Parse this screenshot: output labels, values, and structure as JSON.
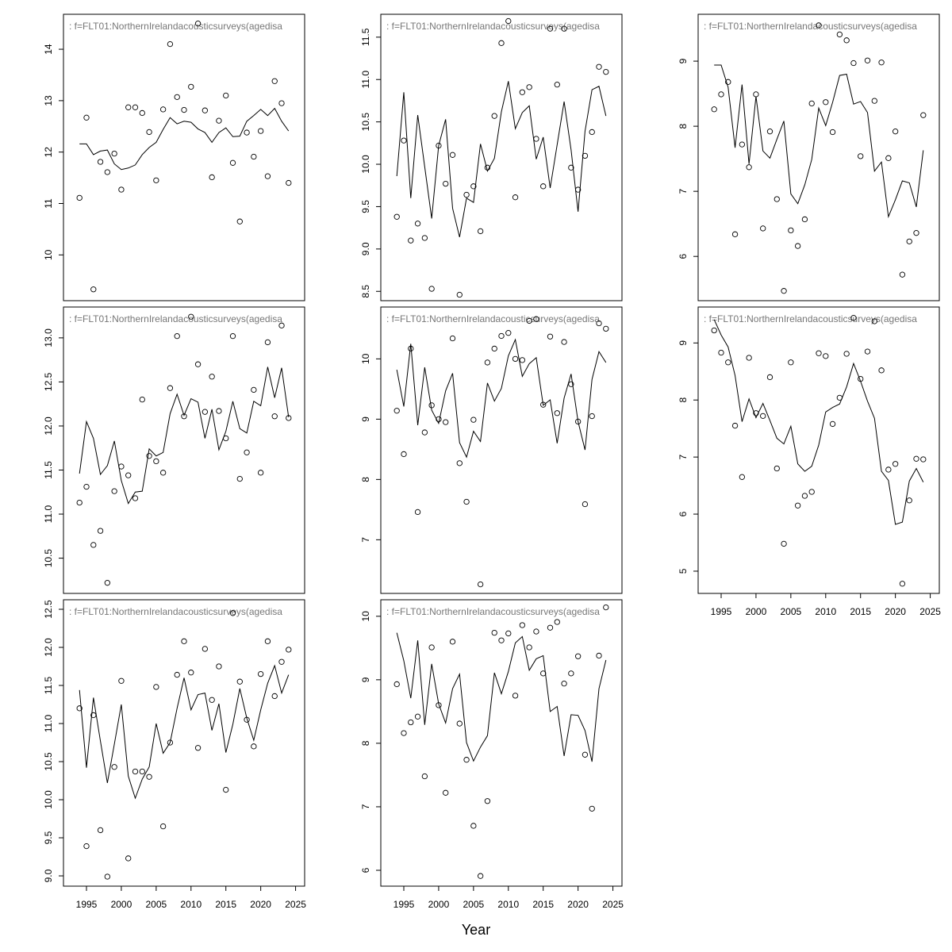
{
  "xlabel": "Year",
  "chart_data": [
    {
      "type": "line",
      "title": ":  f=FLT01:NorthernIrelandacousticsurveys(agedisa",
      "x": [
        1994,
        1995,
        1996,
        1997,
        1998,
        1999,
        2000,
        2001,
        2002,
        2003,
        2004,
        2005,
        2006,
        2007,
        2008,
        2009,
        2010,
        2011,
        2012,
        2013,
        2014,
        2015,
        2016,
        2017,
        2018,
        2019,
        2020,
        2021,
        2022,
        2023,
        2024
      ],
      "series": [
        {
          "marker": "circle",
          "color": "#000000",
          "values": [
            11.11,
            12.67,
            9.33,
            11.81,
            11.61,
            11.97,
            11.27,
            12.87,
            12.87,
            12.76,
            12.39,
            11.45,
            12.83,
            14.1,
            13.07,
            12.82,
            13.27,
            14.5,
            12.81,
            11.51,
            12.61,
            13.1,
            11.79,
            10.65,
            12.38,
            11.91,
            12.41,
            11.53,
            13.38,
            12.95,
            11.4
          ]
        },
        {
          "marker": "none",
          "color": "#000000",
          "values": [
            12.16,
            12.16,
            11.95,
            12.02,
            12.04,
            11.77,
            11.66,
            11.69,
            11.75,
            11.95,
            12.09,
            12.19,
            12.44,
            12.67,
            12.55,
            12.6,
            12.58,
            12.45,
            12.38,
            12.19,
            12.38,
            12.47,
            12.3,
            12.31,
            12.6,
            12.71,
            12.83,
            12.71,
            12.85,
            12.6,
            12.41
          ]
        }
      ],
      "xlim": [
        1991.7,
        2026.3
      ],
      "ylim": [
        9.11,
        14.68
      ],
      "yticks": [
        10,
        11,
        12,
        13,
        14
      ]
    },
    {
      "type": "line",
      "title": ":  f=FLT01:NorthernIrelandacousticsurveys(agedisa",
      "x": [
        1994,
        1995,
        1996,
        1997,
        1998,
        1999,
        2000,
        2001,
        2002,
        2003,
        2004,
        2005,
        2006,
        2007,
        2008,
        2009,
        2010,
        2011,
        2012,
        2013,
        2014,
        2015,
        2016,
        2017,
        2018,
        2019,
        2020,
        2021,
        2022,
        2023,
        2024
      ],
      "series": [
        {
          "marker": "circle",
          "color": "#000000",
          "values": [
            9.38,
            10.28,
            9.1,
            9.3,
            9.13,
            8.53,
            10.22,
            9.77,
            10.11,
            8.46,
            9.64,
            9.74,
            9.21,
            9.96,
            10.57,
            11.43,
            11.69,
            9.61,
            10.85,
            10.91,
            10.3,
            9.74,
            11.6,
            10.94,
            11.6,
            9.96,
            9.7,
            10.1,
            10.38,
            11.15,
            11.09
          ]
        },
        {
          "marker": "none",
          "color": "#000000",
          "values": [
            9.86,
            10.85,
            9.6,
            10.58,
            9.97,
            9.36,
            10.22,
            10.53,
            9.48,
            9.14,
            9.6,
            9.55,
            10.24,
            9.92,
            10.07,
            10.62,
            10.98,
            10.42,
            10.61,
            10.69,
            10.06,
            10.32,
            9.72,
            10.23,
            10.74,
            10.17,
            9.44,
            10.39,
            10.88,
            10.92,
            10.57
          ]
        }
      ],
      "xlim": [
        1991.7,
        2026.3
      ],
      "ylim": [
        8.39,
        11.77
      ],
      "yticks": [
        8.5,
        {
          "value": 9,
          "label": "9.0"
        },
        9.5,
        {
          "value": 10,
          "label": "10.0"
        },
        10.5,
        {
          "value": 11,
          "label": "11.0"
        },
        11.5
      ]
    },
    {
      "type": "line",
      "title": ":  f=FLT01:NorthernIrelandacousticsurveys(agedisa",
      "x": [
        1994,
        1995,
        1996,
        1997,
        1998,
        1999,
        2000,
        2001,
        2002,
        2003,
        2004,
        2005,
        2006,
        2007,
        2008,
        2009,
        2010,
        2011,
        2012,
        2013,
        2014,
        2015,
        2016,
        2017,
        2018,
        2019,
        2020,
        2021,
        2022,
        2023,
        2024
      ],
      "series": [
        {
          "marker": "circle",
          "color": "#000000",
          "values": [
            8.26,
            8.49,
            8.68,
            6.34,
            7.72,
            7.37,
            8.49,
            6.43,
            7.92,
            6.88,
            5.47,
            6.4,
            6.16,
            6.57,
            8.35,
            9.55,
            8.37,
            7.91,
            9.41,
            9.32,
            8.97,
            7.54,
            9.01,
            8.39,
            8.98,
            7.51,
            7.92,
            5.72,
            6.23,
            6.36,
            8.17
          ]
        },
        {
          "marker": "none",
          "color": "#000000",
          "values": [
            8.94,
            8.94,
            8.6,
            7.67,
            8.64,
            7.42,
            8.46,
            7.62,
            7.51,
            7.8,
            8.08,
            6.96,
            6.81,
            7.1,
            7.49,
            8.28,
            8.01,
            8.37,
            8.78,
            8.8,
            8.34,
            8.38,
            8.21,
            7.31,
            7.45,
            6.61,
            6.87,
            7.16,
            7.13,
            6.76,
            7.63
          ]
        }
      ],
      "xlim": [
        1991.7,
        2026.3
      ],
      "ylim": [
        5.32,
        9.72
      ],
      "yticks": [
        6,
        7,
        8,
        9
      ]
    },
    {
      "type": "line",
      "title": ":  f=FLT01:NorthernIrelandacousticsurveys(agedisa",
      "x": [
        1994,
        1995,
        1996,
        1997,
        1998,
        1999,
        2000,
        2001,
        2002,
        2003,
        2004,
        2005,
        2006,
        2007,
        2008,
        2009,
        2010,
        2011,
        2012,
        2013,
        2014,
        2015,
        2016,
        2017,
        2018,
        2019,
        2020,
        2021,
        2022,
        2023,
        2024
      ],
      "series": [
        {
          "marker": "circle",
          "color": "#000000",
          "values": [
            11.13,
            11.31,
            10.65,
            10.81,
            10.22,
            11.26,
            11.54,
            11.44,
            11.18,
            12.3,
            11.66,
            11.6,
            11.47,
            12.43,
            13.02,
            12.11,
            13.24,
            12.7,
            12.16,
            12.56,
            12.17,
            11.86,
            13.02,
            11.4,
            11.7,
            12.41,
            11.47,
            12.95,
            12.11,
            13.14,
            12.09
          ]
        },
        {
          "marker": "none",
          "color": "#000000",
          "values": [
            11.46,
            12.05,
            11.86,
            11.45,
            11.55,
            11.83,
            11.38,
            11.12,
            11.25,
            11.26,
            11.74,
            11.66,
            11.7,
            12.14,
            12.36,
            12.12,
            12.31,
            12.27,
            11.86,
            12.19,
            11.73,
            11.94,
            12.28,
            11.97,
            11.92,
            12.28,
            12.23,
            12.67,
            12.32,
            12.66,
            12.1
          ]
        }
      ],
      "xlim": [
        1991.7,
        2026.3
      ],
      "ylim": [
        10.1,
        13.35
      ],
      "yticks": [
        10.5,
        {
          "value": 11,
          "label": "11.0"
        },
        11.5,
        {
          "value": 12,
          "label": "12.0"
        },
        12.5,
        {
          "value": 13,
          "label": "13.0"
        }
      ]
    },
    {
      "type": "line",
      "title": ":  f=FLT01:NorthernIrelandacousticsurveys(agedisa",
      "x": [
        1994,
        1995,
        1996,
        1997,
        1998,
        1999,
        2000,
        2001,
        2002,
        2003,
        2004,
        2005,
        2006,
        2007,
        2008,
        2009,
        2010,
        2011,
        2012,
        2013,
        2014,
        2015,
        2016,
        2017,
        2018,
        2019,
        2020,
        2021,
        2022,
        2023,
        2024
      ],
      "series": [
        {
          "marker": "circle",
          "color": "#000000",
          "values": [
            9.14,
            8.42,
            10.17,
            7.46,
            8.78,
            9.23,
            9.0,
            8.95,
            10.34,
            8.27,
            7.63,
            8.99,
            6.26,
            9.94,
            10.17,
            10.38,
            10.43,
            10.0,
            9.98,
            10.63,
            10.66,
            9.24,
            10.37,
            9.1,
            10.28,
            9.58,
            8.96,
            7.59,
            9.05,
            10.59,
            10.5
          ]
        },
        {
          "marker": "none",
          "color": "#000000",
          "values": [
            9.82,
            9.21,
            10.25,
            8.9,
            9.86,
            9.15,
            8.93,
            9.47,
            9.76,
            8.61,
            8.37,
            8.8,
            8.63,
            9.6,
            9.3,
            9.51,
            10.05,
            10.32,
            9.71,
            9.92,
            10.02,
            9.23,
            9.32,
            8.6,
            9.35,
            9.75,
            8.96,
            8.49,
            9.66,
            10.12,
            9.94
          ]
        }
      ],
      "xlim": [
        1991.7,
        2026.3
      ],
      "ylim": [
        6.11,
        10.86
      ],
      "yticks": [
        7,
        8,
        9,
        10
      ]
    },
    {
      "type": "line",
      "title": ":  f=FLT01:NorthernIrelandacousticsurveys(agedisa",
      "x": [
        1994,
        1995,
        1996,
        1997,
        1998,
        1999,
        2000,
        2001,
        2002,
        2003,
        2004,
        2005,
        2006,
        2007,
        2008,
        2009,
        2010,
        2011,
        2012,
        2013,
        2014,
        2015,
        2016,
        2017,
        2018,
        2019,
        2020,
        2021,
        2022,
        2023,
        2024
      ],
      "series": [
        {
          "marker": "circle",
          "color": "#000000",
          "values": [
            9.22,
            8.83,
            8.66,
            7.55,
            6.65,
            8.74,
            7.77,
            7.72,
            8.4,
            6.8,
            5.48,
            8.66,
            6.15,
            6.32,
            6.39,
            8.82,
            8.77,
            7.58,
            8.04,
            8.81,
            9.44,
            8.37,
            8.85,
            9.38,
            8.52,
            6.78,
            6.88,
            4.78,
            6.24,
            6.97,
            6.96
          ]
        },
        {
          "marker": "none",
          "color": "#000000",
          "values": [
            9.41,
            9.14,
            8.93,
            8.43,
            7.62,
            8.02,
            7.69,
            7.94,
            7.64,
            7.33,
            7.23,
            7.54,
            6.88,
            6.75,
            6.84,
            7.21,
            7.79,
            7.87,
            7.93,
            8.23,
            8.64,
            8.33,
            7.98,
            7.68,
            6.75,
            6.59,
            5.82,
            5.86,
            6.58,
            6.8,
            6.56
          ]
        }
      ],
      "xlim": [
        1991.7,
        2026.3
      ],
      "ylim": [
        4.61,
        9.63
      ],
      "yticks": [
        5,
        6,
        7,
        8,
        9
      ],
      "xticks": [
        1995,
        2000,
        2005,
        2010,
        2015,
        2020,
        2025
      ]
    },
    {
      "type": "line",
      "title": ":  f=FLT01:NorthernIrelandacousticsurveys(agedisa",
      "x": [
        1994,
        1995,
        1996,
        1997,
        1998,
        1999,
        2000,
        2001,
        2002,
        2003,
        2004,
        2005,
        2006,
        2007,
        2008,
        2009,
        2010,
        2011,
        2012,
        2013,
        2014,
        2015,
        2016,
        2017,
        2018,
        2019,
        2020,
        2021,
        2022,
        2023,
        2024
      ],
      "series": [
        {
          "marker": "circle",
          "color": "#000000",
          "values": [
            11.2,
            9.39,
            11.11,
            9.6,
            8.99,
            10.43,
            11.56,
            9.23,
            10.37,
            10.37,
            10.3,
            11.48,
            9.65,
            10.75,
            11.64,
            12.08,
            11.67,
            10.68,
            11.98,
            11.31,
            11.75,
            10.13,
            12.45,
            11.55,
            11.05,
            10.7,
            11.65,
            12.08,
            11.36,
            11.81,
            11.97
          ]
        },
        {
          "marker": "none",
          "color": "#000000",
          "values": [
            11.44,
            10.42,
            11.34,
            10.77,
            10.22,
            10.73,
            11.25,
            10.31,
            10.02,
            10.27,
            10.43,
            11.0,
            10.61,
            10.75,
            11.2,
            11.6,
            11.18,
            11.38,
            11.4,
            10.91,
            11.26,
            10.62,
            10.99,
            11.46,
            11.07,
            10.78,
            11.18,
            11.53,
            11.76,
            11.4,
            11.64
          ]
        }
      ],
      "xlim": [
        1991.7,
        2026.3
      ],
      "ylim": [
        8.865,
        12.625
      ],
      "yticks": [
        {
          "value": 9,
          "label": "9.0"
        },
        9.5,
        {
          "value": 10,
          "label": "10.0"
        },
        10.5,
        {
          "value": 11,
          "label": "11.0"
        },
        11.5,
        {
          "value": 12,
          "label": "12.0"
        },
        12.5
      ],
      "xticks": [
        1995,
        2000,
        2005,
        2010,
        2015,
        2020,
        2025
      ]
    },
    {
      "type": "line",
      "title": ":  f=FLT01:NorthernIrelandacousticsurveys(agedisa",
      "x": [
        1994,
        1995,
        1996,
        1997,
        1998,
        1999,
        2000,
        2001,
        2002,
        2003,
        2004,
        2005,
        2006,
        2007,
        2008,
        2009,
        2010,
        2011,
        2012,
        2013,
        2014,
        2015,
        2016,
        2017,
        2018,
        2019,
        2020,
        2021,
        2022,
        2023,
        2024
      ],
      "series": [
        {
          "marker": "circle",
          "color": "#000000",
          "values": [
            8.93,
            8.16,
            8.33,
            8.42,
            7.48,
            9.51,
            8.6,
            7.22,
            9.6,
            8.31,
            7.74,
            6.7,
            5.91,
            7.09,
            9.74,
            9.62,
            9.73,
            8.75,
            9.86,
            9.51,
            9.76,
            9.1,
            9.82,
            9.91,
            8.94,
            9.1,
            9.37,
            7.82,
            6.97,
            9.38,
            10.14
          ]
        },
        {
          "marker": "none",
          "color": "#000000",
          "values": [
            9.74,
            9.3,
            8.71,
            9.62,
            8.29,
            9.25,
            8.62,
            8.32,
            8.86,
            9.09,
            8.01,
            7.72,
            7.94,
            8.12,
            9.11,
            8.78,
            9.13,
            9.58,
            9.68,
            9.15,
            9.33,
            9.38,
            8.5,
            8.58,
            7.8,
            8.45,
            8.44,
            8.2,
            7.71,
            8.86,
            9.31
          ]
        }
      ],
      "xlim": [
        1991.7,
        2026.3
      ],
      "ylim": [
        5.75,
        10.26
      ],
      "yticks": [
        6,
        7,
        8,
        9,
        10
      ],
      "xticks": [
        1995,
        2000,
        2005,
        2010,
        2015,
        2020,
        2025
      ]
    }
  ]
}
